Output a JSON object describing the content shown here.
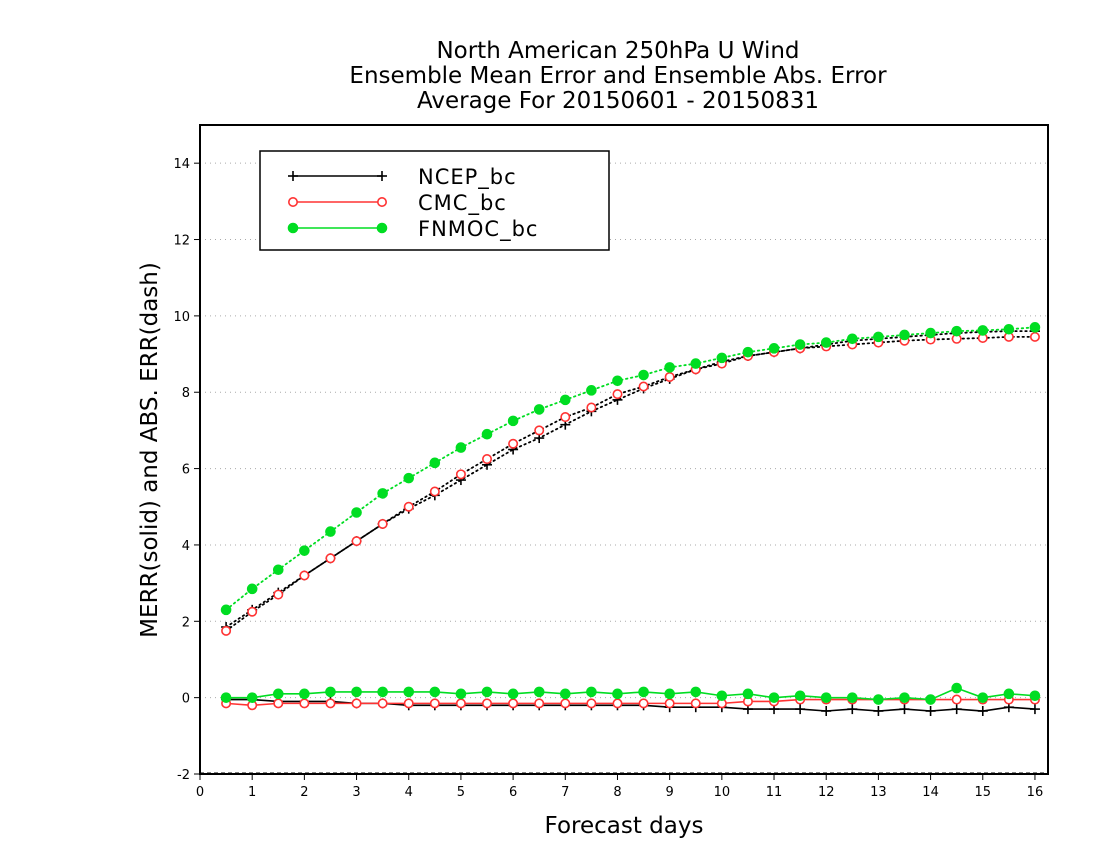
{
  "chart_data": {
    "type": "line",
    "title_lines": [
      "North American 250hPa U Wind",
      "Ensemble Mean Error and Ensemble Abs. Error",
      "Average For 20150601 - 20150831"
    ],
    "xlabel": "Forecast days",
    "ylabel": "MERR(solid) and ABS. ERR(dash)",
    "xlim": [
      0,
      16.25
    ],
    "ylim": [
      -2,
      15
    ],
    "x_ticks": [
      "0",
      "1",
      "2",
      "3",
      "4",
      "5",
      "6",
      "7",
      "8",
      "9",
      "10",
      "11",
      "12",
      "13",
      "14",
      "15",
      "16"
    ],
    "y_ticks": [
      "-2",
      "0",
      "2",
      "4",
      "6",
      "8",
      "10",
      "12",
      "14"
    ],
    "grid": "horizontal dotted",
    "legend_position": "top-left",
    "x": [
      0.5,
      1,
      1.5,
      2,
      2.5,
      3,
      3.5,
      4,
      4.5,
      5,
      5.5,
      6,
      6.5,
      7,
      7.5,
      8,
      8.5,
      9,
      9.5,
      10,
      10.5,
      11,
      11.5,
      12,
      12.5,
      13,
      13.5,
      14,
      14.5,
      15,
      15.5,
      16
    ],
    "series": [
      {
        "name": "NCEP_bc",
        "color": "#000000",
        "marker": "plus",
        "merr": [
          -0.05,
          -0.05,
          -0.1,
          -0.1,
          -0.1,
          -0.15,
          -0.15,
          -0.2,
          -0.2,
          -0.2,
          -0.2,
          -0.2,
          -0.2,
          -0.2,
          -0.2,
          -0.2,
          -0.2,
          -0.25,
          -0.25,
          -0.25,
          -0.3,
          -0.3,
          -0.3,
          -0.35,
          -0.3,
          -0.35,
          -0.3,
          -0.35,
          -0.3,
          -0.35,
          -0.25,
          -0.3
        ],
        "abs_err": [
          1.85,
          2.3,
          2.75,
          3.2,
          3.65,
          4.1,
          4.55,
          4.95,
          5.3,
          5.7,
          6.1,
          6.5,
          6.8,
          7.15,
          7.5,
          7.8,
          8.1,
          8.35,
          8.6,
          8.8,
          8.95,
          9.05,
          9.15,
          9.25,
          9.35,
          9.4,
          9.45,
          9.5,
          9.55,
          9.58,
          9.6,
          9.6
        ]
      },
      {
        "name": "CMC_bc",
        "color": "#ff3333",
        "marker": "open-circle",
        "merr": [
          -0.15,
          -0.2,
          -0.15,
          -0.15,
          -0.15,
          -0.15,
          -0.15,
          -0.15,
          -0.15,
          -0.15,
          -0.15,
          -0.15,
          -0.15,
          -0.15,
          -0.15,
          -0.15,
          -0.15,
          -0.15,
          -0.15,
          -0.15,
          -0.1,
          -0.1,
          -0.05,
          -0.05,
          -0.05,
          -0.05,
          -0.05,
          -0.05,
          -0.05,
          -0.05,
          -0.05,
          -0.05
        ],
        "abs_err": [
          1.75,
          2.25,
          2.7,
          3.2,
          3.65,
          4.1,
          4.55,
          5.0,
          5.4,
          5.85,
          6.25,
          6.65,
          7.0,
          7.35,
          7.6,
          7.95,
          8.15,
          8.4,
          8.6,
          8.75,
          8.95,
          9.05,
          9.15,
          9.2,
          9.25,
          9.3,
          9.35,
          9.38,
          9.4,
          9.42,
          9.45,
          9.45
        ]
      },
      {
        "name": "FNMOC_bc",
        "color": "#00dd22",
        "marker": "filled-circle",
        "merr": [
          0.0,
          0.0,
          0.1,
          0.1,
          0.15,
          0.15,
          0.15,
          0.15,
          0.15,
          0.1,
          0.15,
          0.1,
          0.15,
          0.1,
          0.15,
          0.1,
          0.15,
          0.1,
          0.15,
          0.05,
          0.1,
          0.0,
          0.05,
          0.0,
          0.0,
          -0.05,
          0.0,
          -0.05,
          0.25,
          0.0,
          0.1,
          0.05
        ],
        "abs_err": [
          2.3,
          2.85,
          3.35,
          3.85,
          4.35,
          4.85,
          5.35,
          5.75,
          6.15,
          6.55,
          6.9,
          7.25,
          7.55,
          7.8,
          8.05,
          8.3,
          8.45,
          8.65,
          8.75,
          8.9,
          9.05,
          9.15,
          9.25,
          9.3,
          9.4,
          9.45,
          9.5,
          9.55,
          9.6,
          9.62,
          9.65,
          9.7
        ]
      }
    ]
  }
}
